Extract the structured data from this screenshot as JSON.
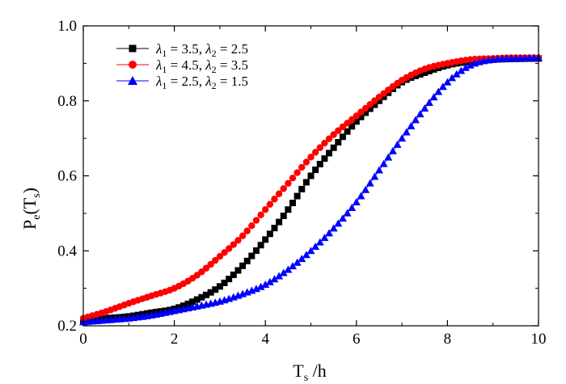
{
  "chart_data": {
    "type": "line",
    "xlabel": "T",
    "xlabel_sub": "s",
    "xlabel_unit": " /h",
    "ylabel": "P",
    "ylabel_sub1": "e",
    "ylabel_mid": "(T",
    "ylabel_sub2": "s",
    "ylabel_end": ")",
    "xlim": [
      0,
      10
    ],
    "ylim": [
      0.2,
      1.0
    ],
    "x_ticks": [
      0,
      2,
      4,
      6,
      8,
      10
    ],
    "x_tick_labels": [
      "0",
      "2",
      "4",
      "6",
      "8",
      "10"
    ],
    "y_ticks": [
      0.2,
      0.4,
      0.6,
      0.8,
      1.0
    ],
    "y_tick_labels": [
      "0.2",
      "0.4",
      "0.6",
      "0.8",
      "1.0"
    ],
    "grid": false,
    "legend_position": "top-left",
    "legend": {
      "black": {
        "l1": "3.5",
        "l2": "2.5"
      },
      "red": {
        "l1": "4.5",
        "l2": "3.5"
      },
      "blue": {
        "l1": "2.5",
        "l2": "1.5"
      }
    },
    "series": [
      {
        "color": "#000000",
        "marker": "square",
        "x": [
          0,
          0.5,
          1,
          1.5,
          2,
          2.5,
          3,
          3.5,
          4,
          4.5,
          5,
          5.5,
          6,
          6.5,
          7,
          7.5,
          8,
          8.5,
          9,
          9.5,
          10
        ],
        "y": [
          0.215,
          0.22,
          0.225,
          0.235,
          0.245,
          0.27,
          0.305,
          0.36,
          0.43,
          0.51,
          0.6,
          0.675,
          0.745,
          0.8,
          0.85,
          0.875,
          0.895,
          0.905,
          0.91,
          0.912,
          0.913
        ]
      },
      {
        "color": "#ff0000",
        "marker": "circle",
        "x": [
          0,
          0.5,
          1,
          1.5,
          2,
          2.5,
          3,
          3.5,
          4,
          4.5,
          5,
          5.5,
          6,
          6.5,
          7,
          7.5,
          8,
          8.5,
          9,
          9.5,
          10
        ],
        "y": [
          0.22,
          0.238,
          0.26,
          0.28,
          0.3,
          0.335,
          0.385,
          0.44,
          0.51,
          0.58,
          0.65,
          0.71,
          0.76,
          0.81,
          0.855,
          0.885,
          0.9,
          0.91,
          0.913,
          0.915,
          0.915
        ]
      },
      {
        "color": "#0000ff",
        "marker": "triangle",
        "x": [
          0,
          0.5,
          1,
          1.5,
          2,
          2.5,
          3,
          3.5,
          4,
          4.5,
          5,
          5.5,
          6,
          6.5,
          7,
          7.5,
          8,
          8.5,
          9,
          9.5,
          10
        ],
        "y": [
          0.21,
          0.215,
          0.22,
          0.228,
          0.24,
          0.252,
          0.265,
          0.285,
          0.31,
          0.35,
          0.4,
          0.46,
          0.53,
          0.615,
          0.7,
          0.78,
          0.85,
          0.895,
          0.91,
          0.913,
          0.915
        ]
      }
    ]
  }
}
